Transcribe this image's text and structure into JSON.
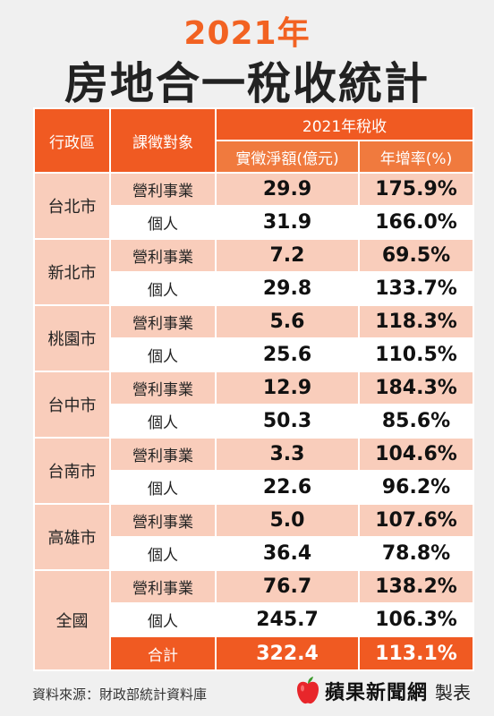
{
  "title": {
    "year": "2021年",
    "main": "房地合一稅收統計"
  },
  "table": {
    "headers": {
      "district": "行政區",
      "taxpayer": "課徵對象",
      "group": "2021年稅收",
      "net": "實徵淨額(億元)",
      "growth": "年增率(%)"
    },
    "districts": [
      {
        "name": "台北市",
        "rows": [
          {
            "type": "營利事業",
            "net": "29.9",
            "growth": "175.9%"
          },
          {
            "type": "個人",
            "net": "31.9",
            "growth": "166.0%"
          }
        ]
      },
      {
        "name": "新北市",
        "rows": [
          {
            "type": "營利事業",
            "net": "7.2",
            "growth": "69.5%"
          },
          {
            "type": "個人",
            "net": "29.8",
            "growth": "133.7%"
          }
        ]
      },
      {
        "name": "桃園市",
        "rows": [
          {
            "type": "營利事業",
            "net": "5.6",
            "growth": "118.3%"
          },
          {
            "type": "個人",
            "net": "25.6",
            "growth": "110.5%"
          }
        ]
      },
      {
        "name": "台中市",
        "rows": [
          {
            "type": "營利事業",
            "net": "12.9",
            "growth": "184.3%"
          },
          {
            "type": "個人",
            "net": "50.3",
            "growth": "85.6%"
          }
        ]
      },
      {
        "name": "台南市",
        "rows": [
          {
            "type": "營利事業",
            "net": "3.3",
            "growth": "104.6%"
          },
          {
            "type": "個人",
            "net": "22.6",
            "growth": "96.2%"
          }
        ]
      },
      {
        "name": "高雄市",
        "rows": [
          {
            "type": "營利事業",
            "net": "5.0",
            "growth": "107.6%"
          },
          {
            "type": "個人",
            "net": "36.4",
            "growth": "78.8%"
          }
        ]
      },
      {
        "name": "全國",
        "rows": [
          {
            "type": "營利事業",
            "net": "76.7",
            "growth": "138.2%"
          },
          {
            "type": "個人",
            "net": "245.7",
            "growth": "106.3%"
          },
          {
            "type": "合計",
            "net": "322.4",
            "growth": "113.1%"
          }
        ]
      }
    ]
  },
  "footer": {
    "source": "資料來源：財政部統計資料庫",
    "brand": "蘋果新聞網",
    "suffix": "製表",
    "icon": "apple-icon"
  },
  "colors": {
    "accent": "#f26222",
    "header": "#f05a22",
    "header_light": "#f07a3e",
    "row_tint": "#f9cdbb",
    "background": "#f0f0f0"
  }
}
